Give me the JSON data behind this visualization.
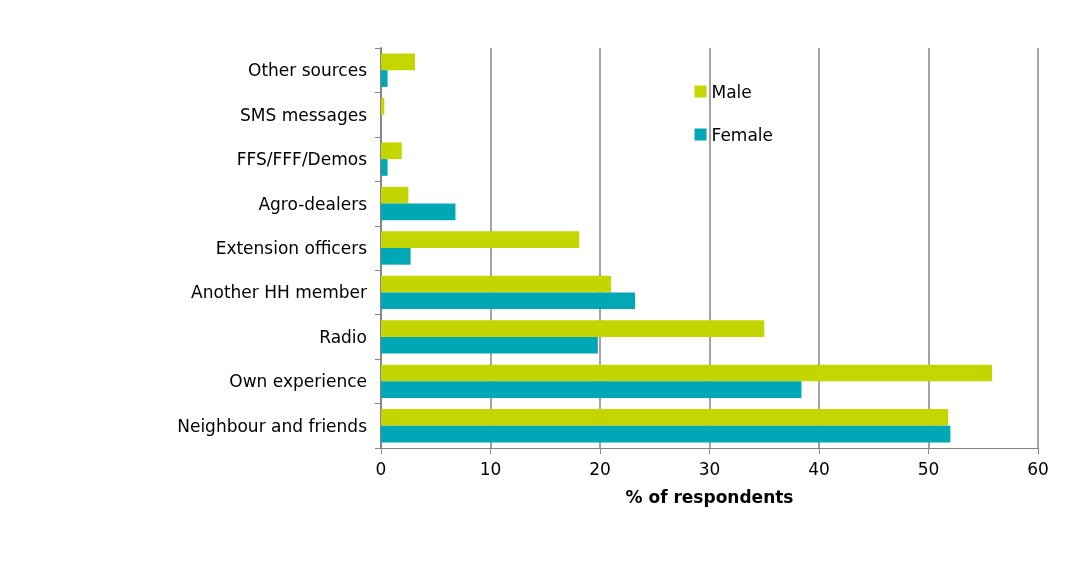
{
  "chart_data": {
    "type": "bar",
    "orientation": "horizontal",
    "xlabel": "% of respondents",
    "categories": [
      "Other sources",
      "SMS messages",
      "FFS/FFF/Demos",
      "Agro-dealers",
      "Extension officers",
      "Another HH member",
      "Radio",
      "Own experience",
      "Neighbour and friends"
    ],
    "series": [
      {
        "name": "Male",
        "color": "#c4d600",
        "values": [
          3.1,
          0.3,
          1.9,
          2.5,
          18.1,
          21.0,
          35.0,
          55.8,
          51.8
        ]
      },
      {
        "name": "Female",
        "color": "#00a8b5",
        "values": [
          0.6,
          0,
          0.6,
          6.8,
          2.7,
          23.2,
          19.8,
          38.4,
          52.0
        ]
      }
    ],
    "xlim": [
      0,
      60
    ],
    "xticks": [
      0,
      10,
      20,
      30,
      40,
      50,
      60
    ],
    "grid": "x",
    "legend": "top right"
  }
}
